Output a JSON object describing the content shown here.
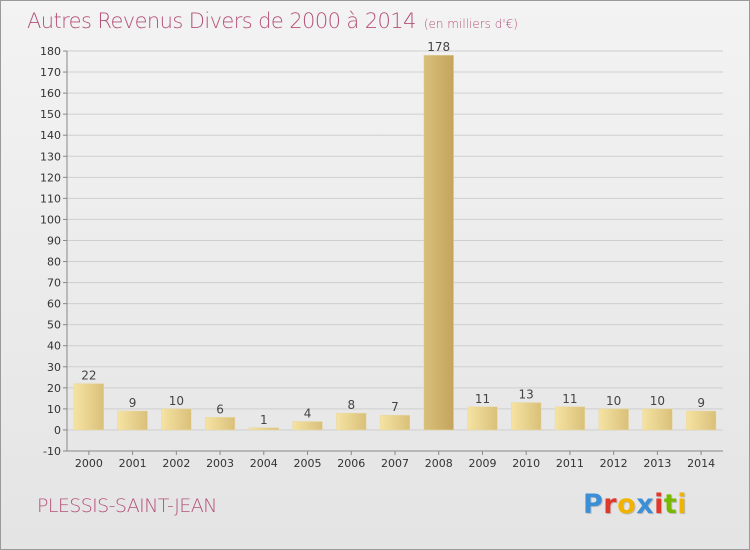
{
  "header": {
    "title": "Autres Revenus Divers de 2000 à 2014",
    "unit": "(en milliers d'€)"
  },
  "footer": {
    "place": "PLESSIS-SAINT-JEAN",
    "brand": "Proxiti",
    "brand_letters": [
      {
        "ch": "P",
        "color": "#3b8fd6"
      },
      {
        "ch": "r",
        "color": "#e0382b"
      },
      {
        "ch": "o",
        "color": "#f0b400"
      },
      {
        "ch": "x",
        "color": "#3b8fd6"
      },
      {
        "ch": "i",
        "color": "#e0382b"
      },
      {
        "ch": "t",
        "color": "#7ab800"
      },
      {
        "ch": "i",
        "color": "#f0b400"
      }
    ]
  },
  "colors": {
    "title": "#b4527a",
    "bar_light": "#f6e3a2",
    "bar_dark": "#d9c07a",
    "bar_highlight": "#c4a45c",
    "axis": "#888888",
    "grid": "#cfcfcf"
  },
  "chart_data": {
    "type": "bar",
    "title": "Autres Revenus Divers de 2000 à 2014",
    "subtitle": "(en milliers d'€)",
    "categories": [
      "2000",
      "2001",
      "2002",
      "2003",
      "2004",
      "2005",
      "2006",
      "2007",
      "2008",
      "2009",
      "2010",
      "2011",
      "2012",
      "2013",
      "2014"
    ],
    "values": [
      22,
      9,
      10,
      6,
      1,
      4,
      8,
      7,
      178,
      11,
      13,
      11,
      10,
      10,
      9
    ],
    "ylim": [
      -10,
      180
    ],
    "yticks": [
      -10,
      0,
      10,
      20,
      30,
      40,
      50,
      60,
      70,
      80,
      90,
      100,
      110,
      120,
      130,
      140,
      150,
      160,
      170,
      180
    ],
    "grid": "y",
    "data_labels": true
  }
}
